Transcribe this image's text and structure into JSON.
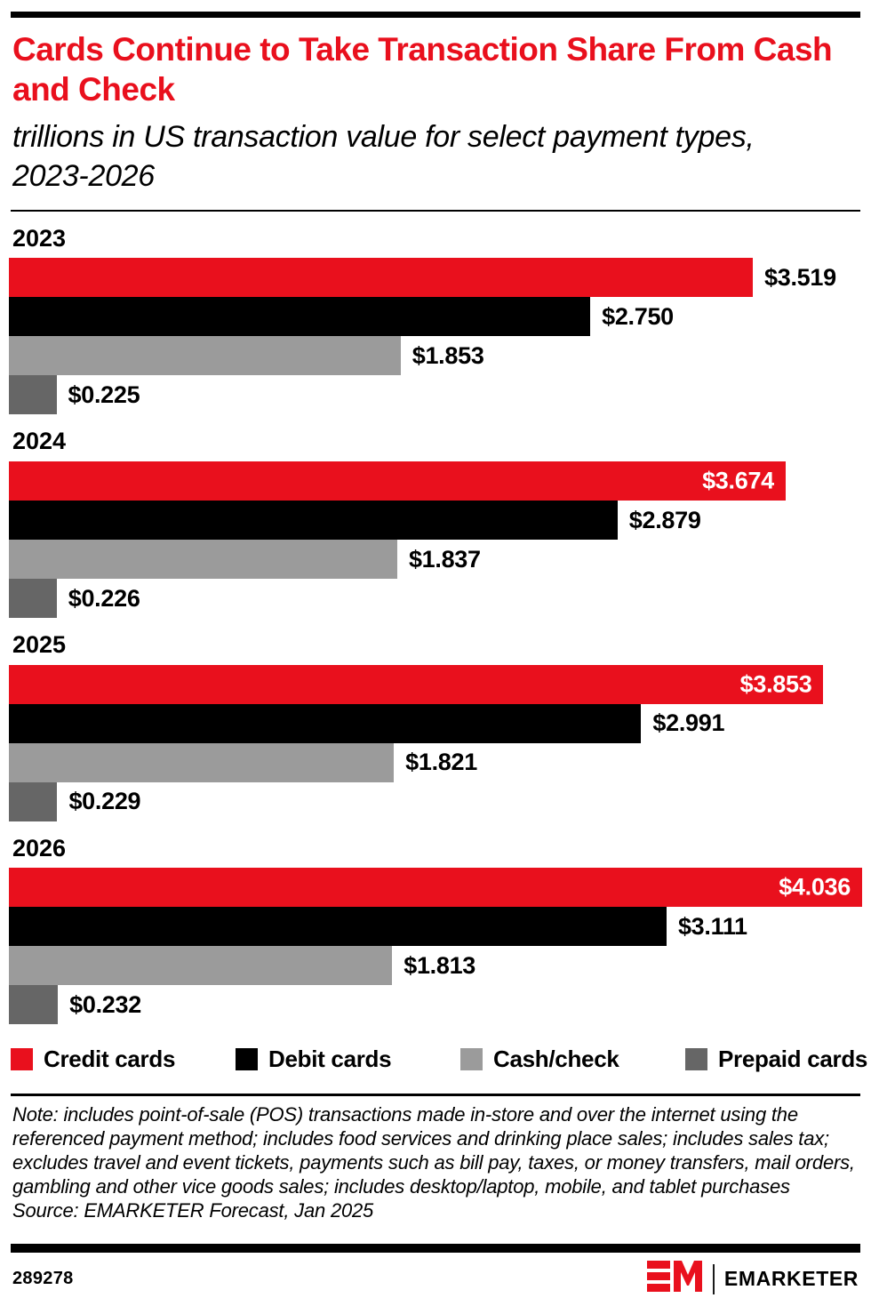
{
  "header": {
    "title": "Cards Continue to Take Transaction Share From Cash and Check",
    "subtitle": "trillions in US transaction value for select payment types, 2023-2026"
  },
  "chart_data": {
    "type": "bar",
    "orientation": "horizontal",
    "title": "Cards Continue to Take Transaction Share From Cash and Check",
    "subtitle": "trillions in US transaction value for select payment types, 2023-2026",
    "unit": "trillions of US dollars",
    "categories": [
      "2023",
      "2024",
      "2025",
      "2026"
    ],
    "series": [
      {
        "name": "Credit cards",
        "color": "#E9101D",
        "values": [
          3.519,
          3.674,
          3.853,
          4.036
        ],
        "labels": [
          "$3.519",
          "$3.674",
          "$3.853",
          "$4.036"
        ]
      },
      {
        "name": "Debit cards",
        "color": "#000000",
        "values": [
          2.75,
          2.879,
          2.991,
          3.111
        ],
        "labels": [
          "$2.750",
          "$2.879",
          "$2.991",
          "$3.111"
        ]
      },
      {
        "name": "Cash/check",
        "color": "#9B9B9B",
        "values": [
          1.853,
          1.837,
          1.821,
          1.813
        ],
        "labels": [
          "$1.853",
          "$1.837",
          "$1.821",
          "$1.813"
        ]
      },
      {
        "name": "Prepaid cards",
        "color": "#666666",
        "values": [
          0.225,
          0.226,
          0.229,
          0.232
        ],
        "labels": [
          "$0.225",
          "$0.226",
          "$0.229",
          "$0.232"
        ]
      }
    ],
    "xlim": [
      0,
      4.036
    ],
    "grid": false,
    "legend_position": "bottom",
    "value_label_inside_threshold": 0.9
  },
  "notes": {
    "note": "Note: includes point-of-sale (POS) transactions made in-store and over the internet using the referenced payment method; includes food services and drinking place sales; includes sales tax; excludes travel and event tickets, payments such as bill pay, taxes, or money transfers, mail orders, gambling and other vice goods sales; includes desktop/laptop, mobile, and tablet purchases",
    "source": "Source: EMARKETER Forecast, Jan 2025"
  },
  "footer": {
    "chart_id": "289278",
    "brand_name": "EMARKETER",
    "logo": "em-logo",
    "brand_red": "#E9101D"
  }
}
